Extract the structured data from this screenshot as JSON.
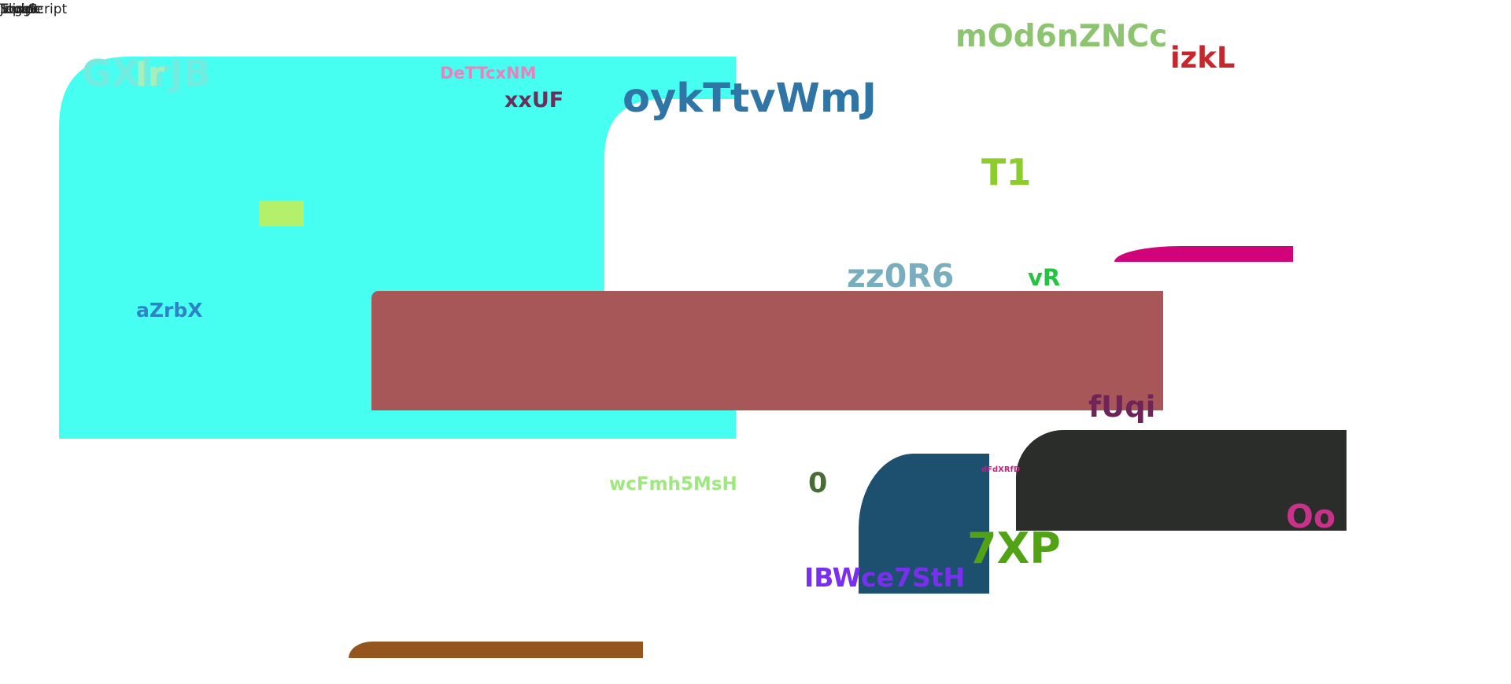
{
  "corner_overlap": [
    "Script",
    "Toggle",
    "Input",
    "Slider",
    "JavaScript"
  ],
  "labels": {
    "l1": "GXlrJB",
    "l2": "Ir",
    "l3": "DeTTcxNM",
    "l4": "xxUF",
    "l5": "oykTtvWmJ",
    "l6": "mOd6nZNCc",
    "l7": "izkL",
    "l8": "T1",
    "l9": "zz0R6",
    "l10": "vR",
    "l11": "aZrbX",
    "l12": "fUqi",
    "l13": "wcFmh5MsH",
    "l14": "0",
    "l15": "dFdXRfD",
    "l16": "Oo",
    "l17": "7XP",
    "l18": "IBWce7StH"
  },
  "colors": {
    "cyan_panel": "#46fff0",
    "maroon_bar": "#a85759",
    "dark_panel": "#2a2d29",
    "navy_panel": "#1d506e",
    "magenta_strip": "#d2037a",
    "brown_strip": "#94561e",
    "lime_patch": "#b5f06a"
  }
}
